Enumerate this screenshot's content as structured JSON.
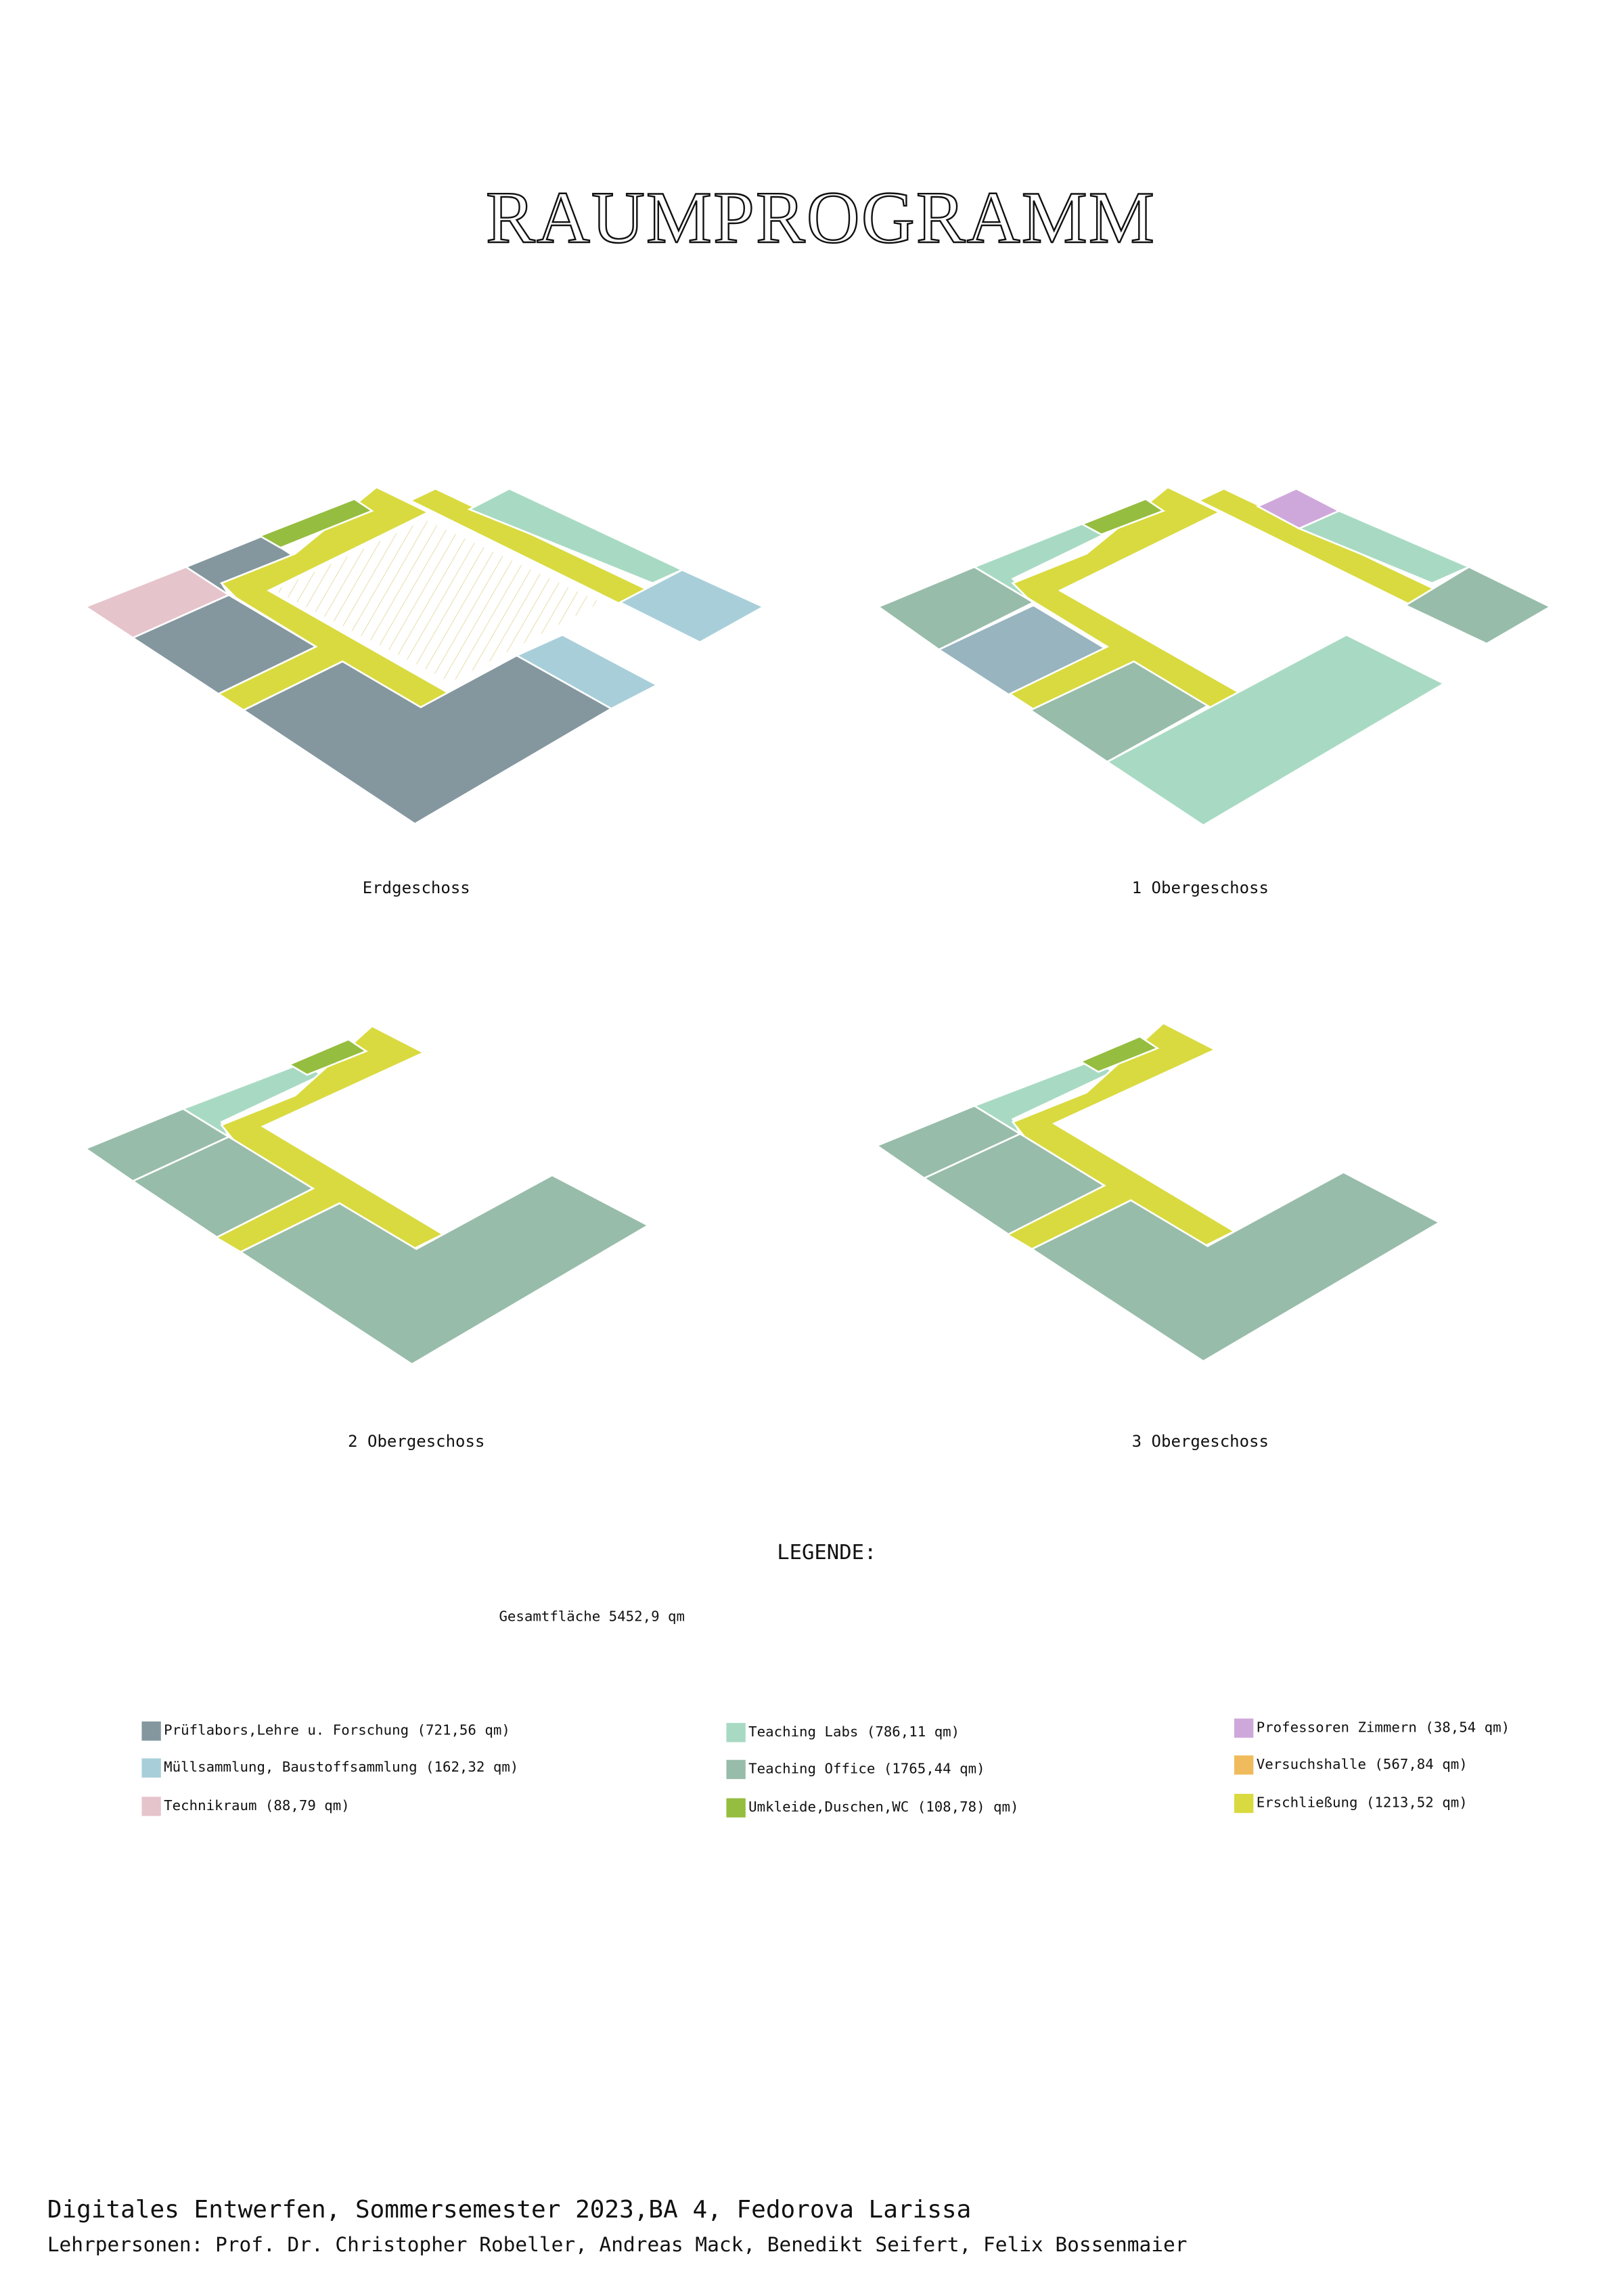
{
  "title": "RAUMPROGRAMM",
  "floors": [
    {
      "label": "Erdgeschoss"
    },
    {
      "label": "1 Obergeschoss"
    },
    {
      "label": "2 Obergeschoss"
    },
    {
      "label": "3 Obergeschoss"
    }
  ],
  "legend": {
    "title": "LEGENDE:",
    "total": "Gesamtfläche 5452,9 qm",
    "items": [
      {
        "label": "Prüflabors,Lehre u. Forschung (721,56 qm)",
        "color": "#84979e"
      },
      {
        "label": "Müllsammlung, Baustoffsammlung (162,32 qm)",
        "color": "#a8cfd9"
      },
      {
        "label": "Technikraum (88,79 qm)",
        "color": "#e6c4cc"
      },
      {
        "label": "Teaching Labs (786,11 qm)",
        "color": "#a8dac3"
      },
      {
        "label": "Teaching Office (1765,44 qm)",
        "color": "#98bcaa"
      },
      {
        "label": "Umkleide,Duschen,WC (108,78) qm)",
        "color": "#95bd3f"
      },
      {
        "label": "Professoren Zimmern (38,54 qm)",
        "color": "#cfa8db"
      },
      {
        "label": "Versuchshalle (567,84 qm)",
        "color": "#f0bb5c"
      },
      {
        "label": "Erschließung (1213,52 qm)",
        "color": "#d9da3f"
      }
    ]
  },
  "footer": {
    "line1": "Digitales Entwerfen, Sommersemester 2023,BA 4, Fedorova Larissa",
    "line2": "Lehrpersonen: Prof. Dr. Christopher Robeller, Andreas Mack, Benedikt Seifert, Felix Bossenmaier"
  }
}
